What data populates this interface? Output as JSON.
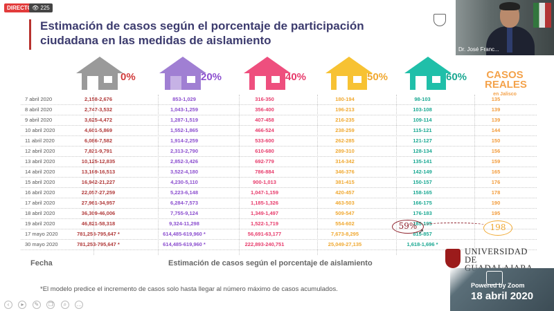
{
  "stream": {
    "live_label": "DIRECTO",
    "viewers": "225"
  },
  "title": "Estimación de casos según el porcentaje de participación ciudadana en las medidas de aislamiento",
  "video": {
    "speaker": "Dr. José Franc..."
  },
  "houses": [
    {
      "pct": "0%",
      "color": "#9a9a9a",
      "text_color": "#d13b3b"
    },
    {
      "pct": "20%",
      "color": "#a07fd3",
      "text_color": "#8c4fcf"
    },
    {
      "pct": "40%",
      "color": "#ee4f7e",
      "text_color": "#e73b6b"
    },
    {
      "pct": "50%",
      "color": "#f7c233",
      "text_color": "#f0a830"
    },
    {
      "pct": "60%",
      "color": "#20bfa9",
      "text_color": "#1aa892"
    }
  ],
  "casos_reales": {
    "line1": "CASOS",
    "line2": "REALES",
    "line3": "en Jalisco"
  },
  "rows": [
    {
      "date": "7 abril 2020",
      "c0": "2,158-2,676",
      "c20": "853-1,029",
      "c40": "316-350",
      "c50": "180-194",
      "c60": "98-103",
      "real": "135"
    },
    {
      "date": "8 abril 2020",
      "c0": "2,747-3,532",
      "c20": "1,043-1,259",
      "c40": "356-400",
      "c50": "196-213",
      "c60": "103-108",
      "real": "139"
    },
    {
      "date": "9 abril 2020",
      "c0": "3,625-4,472",
      "c20": "1,287-1,519",
      "c40": "407-458",
      "c50": "216-235",
      "c60": "109-114",
      "real": "139"
    },
    {
      "date": "10 abril 2020",
      "c0": "4,601-5,869",
      "c20": "1,552-1,865",
      "c40": "466-524",
      "c50": "238-259",
      "c60": "115-121",
      "real": "144"
    },
    {
      "date": "11 abril 2020",
      "c0": "6,086-7,582",
      "c20": "1,914-2,259",
      "c40": "533-600",
      "c50": "262-285",
      "c60": "121-127",
      "real": "150"
    },
    {
      "date": "12 abril 2020",
      "c0": "7,821-9,791",
      "c20": "2,313-2,790",
      "c40": "610-680",
      "c50": "289-310",
      "c60": "128-134",
      "real": "156"
    },
    {
      "date": "13 abril 2020",
      "c0": "10,125-12,835",
      "c20": "2,852-3,426",
      "c40": "692-779",
      "c50": "314-342",
      "c60": "135-141",
      "real": "159"
    },
    {
      "date": "14 abril 2020",
      "c0": "13,169-16,513",
      "c20": "3,522-4,180",
      "c40": "786-884",
      "c50": "346-376",
      "c60": "142-149",
      "real": "165"
    },
    {
      "date": "15 abril 2020",
      "c0": "16,942-21,227",
      "c20": "4,230-5,110",
      "c40": "900-1,013",
      "c50": "381-415",
      "c60": "150-157",
      "real": "176"
    },
    {
      "date": "16 abril 2020",
      "c0": "22,057-27,259",
      "c20": "5,223-6,148",
      "c40": "1,047-1,159",
      "c50": "420-457",
      "c60": "158-165",
      "real": "178"
    },
    {
      "date": "17 abril 2020",
      "c0": "27,961-34,957",
      "c20": "6,284-7,573",
      "c40": "1,185-1,326",
      "c50": "463-503",
      "c60": "166-175",
      "real": "190"
    },
    {
      "date": "18 abril 2020",
      "c0": "36,309-46,006",
      "c20": "7,755-9,124",
      "c40": "1,349-1,497",
      "c50": "509-547",
      "c60": "176-183",
      "real": "195"
    },
    {
      "date": "19 abril 2020",
      "c0": "46,821-58,318",
      "c20": "9,324-11,298",
      "c40": "1,522-1,719",
      "c50": "554-602",
      "c60": "185-195",
      "real": ""
    },
    {
      "date": "17 mayo 2020",
      "c0": "781,253-795,647 *",
      "c20": "614,485-619,960 *",
      "c40": "56,691-63,177",
      "c50": "7,673-8,295",
      "c60": "815-857",
      "real": ""
    },
    {
      "date": "30 mayo 2020",
      "c0": "781,253-795,647 *",
      "c20": "614,485-619,960 *",
      "c40": "222,893-240,751",
      "c50": "25,049-27,135",
      "c60": "1,618-1,696 *",
      "real": ""
    }
  ],
  "annotations": {
    "left": "59%",
    "right": "198"
  },
  "footer": {
    "fecha_label": "Fecha",
    "axis_label": "Estimación de casos según el porcentaje de aislamiento",
    "note": "*El modelo predice el incremento de casos solo hasta llegar al número máximo de casos acumulados."
  },
  "university": {
    "line1": "UNIVERSIDAD DE",
    "line2": "GUADALAJARA",
    "sub": "Red Universitaria e Institución Benemérita de Jalisco"
  },
  "zoom": {
    "powered": "Powered by Zoom",
    "date": "18 abril 2020"
  }
}
